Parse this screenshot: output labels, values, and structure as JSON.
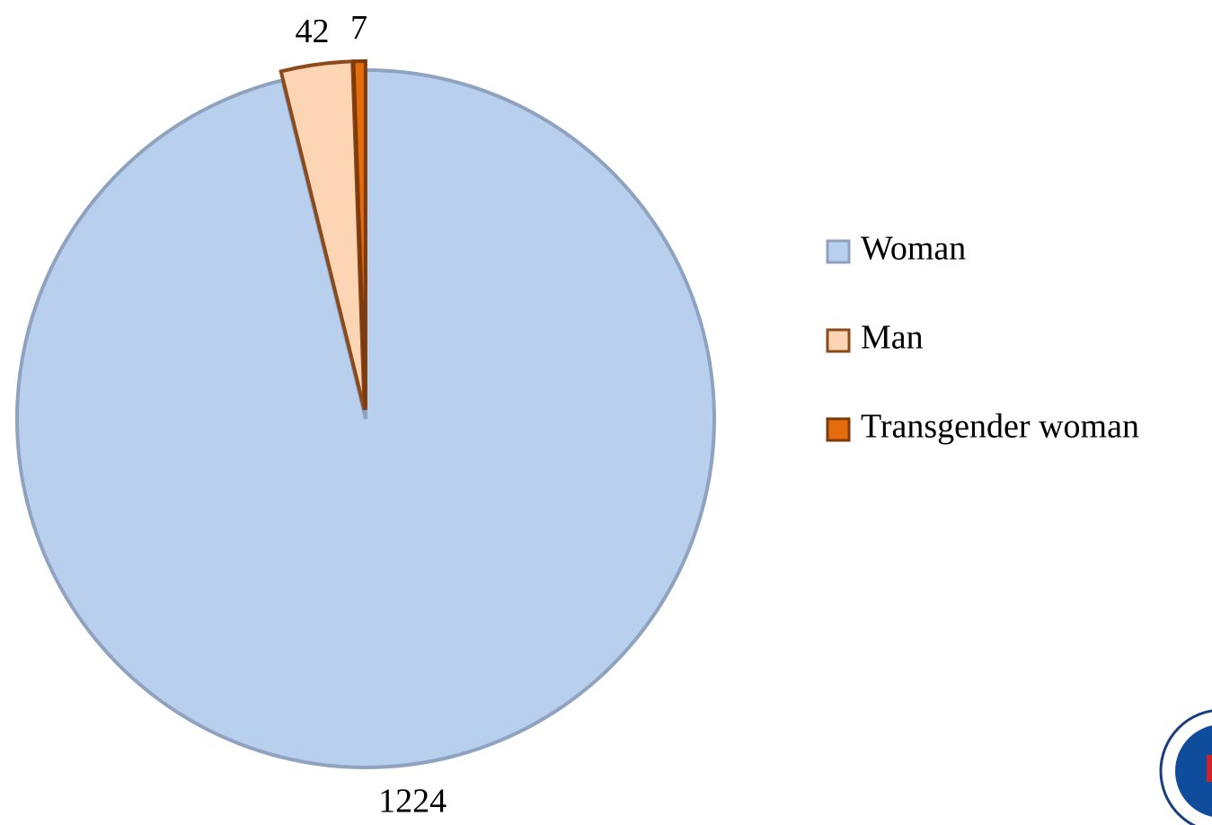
{
  "chart_data": {
    "type": "pie",
    "categories": [
      "Woman",
      "Man",
      "Transgender woman"
    ],
    "values": [
      1224,
      42,
      7
    ],
    "colors": [
      "#b9cfee",
      "#fcd5b5",
      "#e46c0a"
    ],
    "legend": "right"
  }
}
